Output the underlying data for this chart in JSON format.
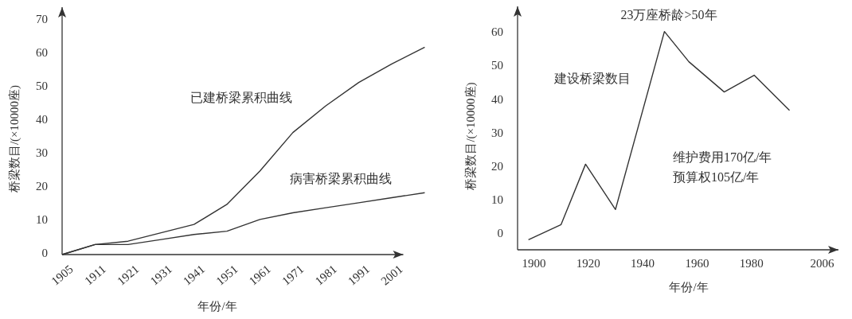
{
  "chart_data": [
    {
      "type": "line",
      "xlabel": "年份/年",
      "ylabel": "桥梁数目/(×10000座)",
      "categories": [
        "1905",
        "1911",
        "1921",
        "1931",
        "1941",
        "1951",
        "1961",
        "1971",
        "1981",
        "1991",
        "2001",
        null
      ],
      "ylim": [
        0,
        74
      ],
      "yticks": [
        0,
        10,
        20,
        30,
        40,
        50,
        60,
        70
      ],
      "series": [
        {
          "name": "已建桥梁累积曲线",
          "color": "#333333",
          "values": [
            0,
            3,
            4,
            6.5,
            9,
            15,
            25,
            36.5,
            44.5,
            51.5,
            57,
            62
          ]
        },
        {
          "name": "病害桥梁累积曲线",
          "color": "#333333",
          "values": [
            0,
            3,
            3,
            4.5,
            6,
            7,
            10.5,
            12.5,
            14,
            15.5,
            17,
            18.5
          ]
        }
      ]
    },
    {
      "type": "line",
      "xlabel": "年份/年",
      "ylabel": "桥梁数目/(×10000座)",
      "xlim": [
        1894,
        2012
      ],
      "xticks": [
        1900,
        1920,
        1940,
        1960,
        1980,
        2006
      ],
      "ylim": [
        -4.5,
        68
      ],
      "yticks": [
        0,
        10,
        20,
        30,
        40,
        50,
        60
      ],
      "annotations": [
        "23万座桥龄>50年",
        "维护费用170亿/年",
        "预算权105亿/年"
      ],
      "series": [
        {
          "name": "建设桥梁数目",
          "color": "#333333",
          "x": [
            1898,
            1910,
            1919,
            1930,
            1948,
            1957,
            1970,
            1981,
            1994
          ],
          "values": [
            -1.5,
            3,
            21,
            7.5,
            60.5,
            51.5,
            42.5,
            47.5,
            37
          ]
        }
      ]
    }
  ]
}
